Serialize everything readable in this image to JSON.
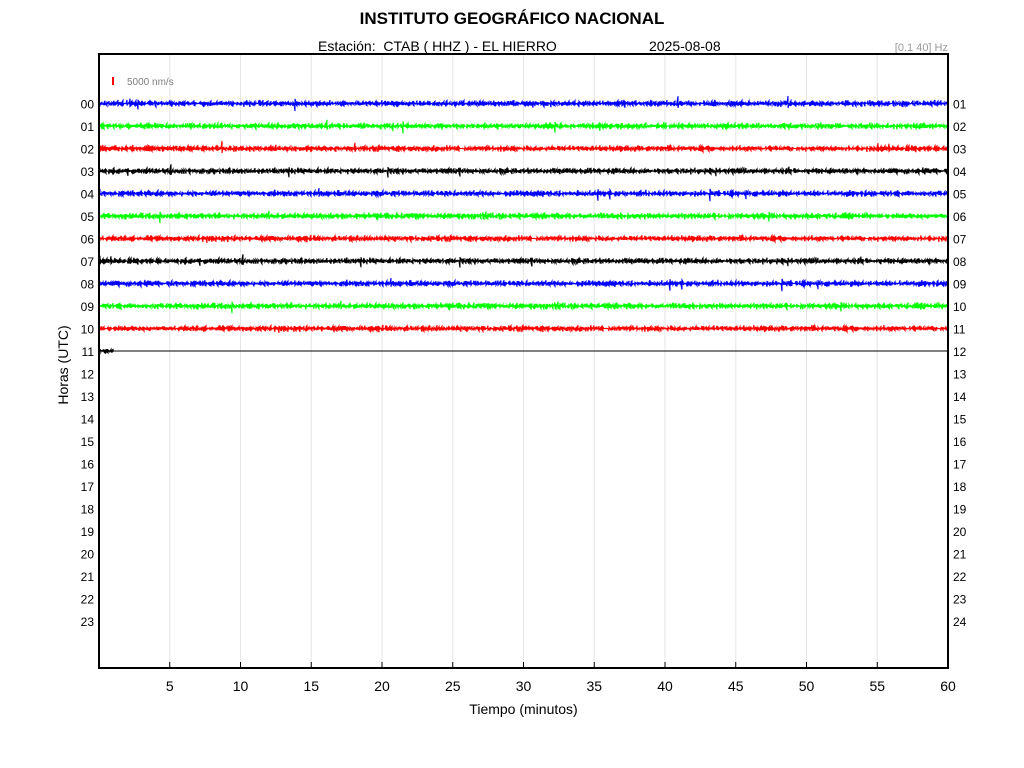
{
  "header": {
    "title": "INSTITUTO GEOGRÁFICO NACIONAL",
    "station_line": "Estación:  CTAB ( HHZ ) - EL HIERRO",
    "date": "2025-08-08",
    "filter": "[0.1 40] Hz"
  },
  "chart_data": {
    "type": "line",
    "title": "INSTITUTO GEOGRÁFICO NACIONAL",
    "xlabel": "Tiempo (minutos)",
    "ylabel": "Horas (UTC)",
    "xlim": [
      0,
      60
    ],
    "x_ticks": [
      5,
      10,
      15,
      20,
      25,
      30,
      35,
      40,
      45,
      50,
      55,
      60
    ],
    "grid": true,
    "scale_bar": {
      "label": "5000 nm/s",
      "color": "#ff0000"
    },
    "left_hour_labels": [
      "00",
      "01",
      "02",
      "03",
      "04",
      "05",
      "06",
      "07",
      "08",
      "09",
      "10",
      "11",
      "12",
      "13",
      "14",
      "15",
      "16",
      "17",
      "18",
      "19",
      "20",
      "21",
      "22",
      "23"
    ],
    "right_hour_labels": [
      "01",
      "02",
      "03",
      "04",
      "05",
      "06",
      "07",
      "08",
      "09",
      "10",
      "11",
      "12",
      "13",
      "14",
      "15",
      "16",
      "17",
      "18",
      "19",
      "20",
      "21",
      "22",
      "23",
      "24"
    ],
    "series": [
      {
        "hour": "00",
        "color": "#0000ff",
        "start_min": 0,
        "end_min": 60
      },
      {
        "hour": "01",
        "color": "#00ff00",
        "start_min": 0,
        "end_min": 60
      },
      {
        "hour": "02",
        "color": "#ff0000",
        "start_min": 0,
        "end_min": 60
      },
      {
        "hour": "03",
        "color": "#000000",
        "start_min": 0,
        "end_min": 60
      },
      {
        "hour": "04",
        "color": "#0000ff",
        "start_min": 0,
        "end_min": 60
      },
      {
        "hour": "05",
        "color": "#00ff00",
        "start_min": 0,
        "end_min": 60
      },
      {
        "hour": "06",
        "color": "#ff0000",
        "start_min": 0,
        "end_min": 60
      },
      {
        "hour": "07",
        "color": "#000000",
        "start_min": 0,
        "end_min": 60
      },
      {
        "hour": "08",
        "color": "#0000ff",
        "start_min": 0,
        "end_min": 60
      },
      {
        "hour": "09",
        "color": "#00ff00",
        "start_min": 0,
        "end_min": 60
      },
      {
        "hour": "10",
        "color": "#ff0000",
        "start_min": 0,
        "end_min": 60
      },
      {
        "hour": "11",
        "color": "#000000",
        "start_min": 0,
        "end_min": 1
      }
    ]
  }
}
